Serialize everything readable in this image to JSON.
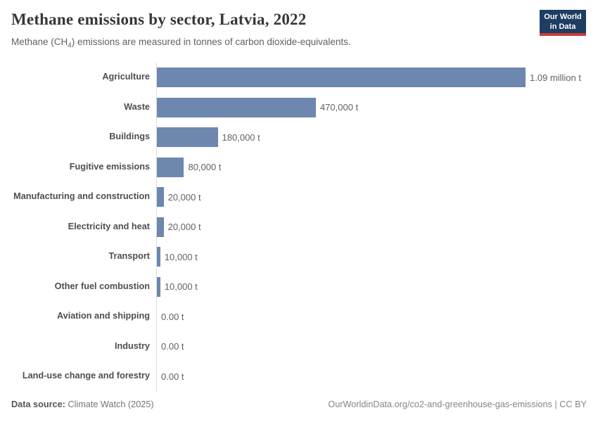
{
  "header": {
    "title": "Methane emissions by sector, Latvia, 2022",
    "subtitle": {
      "pre": "Methane (CH",
      "sub": "4",
      "post": ") emissions are measured in tonnes of carbon dioxide-equivalents."
    },
    "logo": {
      "line1": "Our World",
      "line2": "in Data"
    }
  },
  "chart_data": {
    "type": "bar",
    "orientation": "horizontal",
    "title": "Methane emissions by sector, Latvia, 2022",
    "unit": "tonnes of carbon dioxide-equivalents",
    "categories": [
      "Agriculture",
      "Waste",
      "Buildings",
      "Fugitive emissions",
      "Manufacturing and construction",
      "Electricity and heat",
      "Transport",
      "Other fuel combustion",
      "Aviation and shipping",
      "Industry",
      "Land-use change and forestry"
    ],
    "values": [
      1090000,
      470000,
      180000,
      80000,
      20000,
      20000,
      10000,
      10000,
      0,
      0,
      0
    ],
    "value_labels": [
      "1.09 million t",
      "470,000 t",
      "180,000 t",
      "80,000 t",
      "20,000 t",
      "20,000 t",
      "10,000 t",
      "10,000 t",
      "0.00 t",
      "0.00 t",
      "0.00 t"
    ],
    "xlim": [
      0,
      1090000
    ],
    "grid": false,
    "legend": false,
    "bar_color": "#6d87ae"
  },
  "footer": {
    "datasource_label": "Data source:",
    "datasource_value": "Climate Watch (2025)",
    "right_text": "OurWorldinData.org/co2-and-greenhouse-gas-emissions | CC BY"
  },
  "colors": {
    "bar": "#6d87ae",
    "axis_line": "#dcdcdc",
    "title": "#373737",
    "category_label": "#4e4e4e",
    "value_label": "#616161",
    "logo_background": "#1d3d63",
    "logo_accent": "#c93a35"
  }
}
